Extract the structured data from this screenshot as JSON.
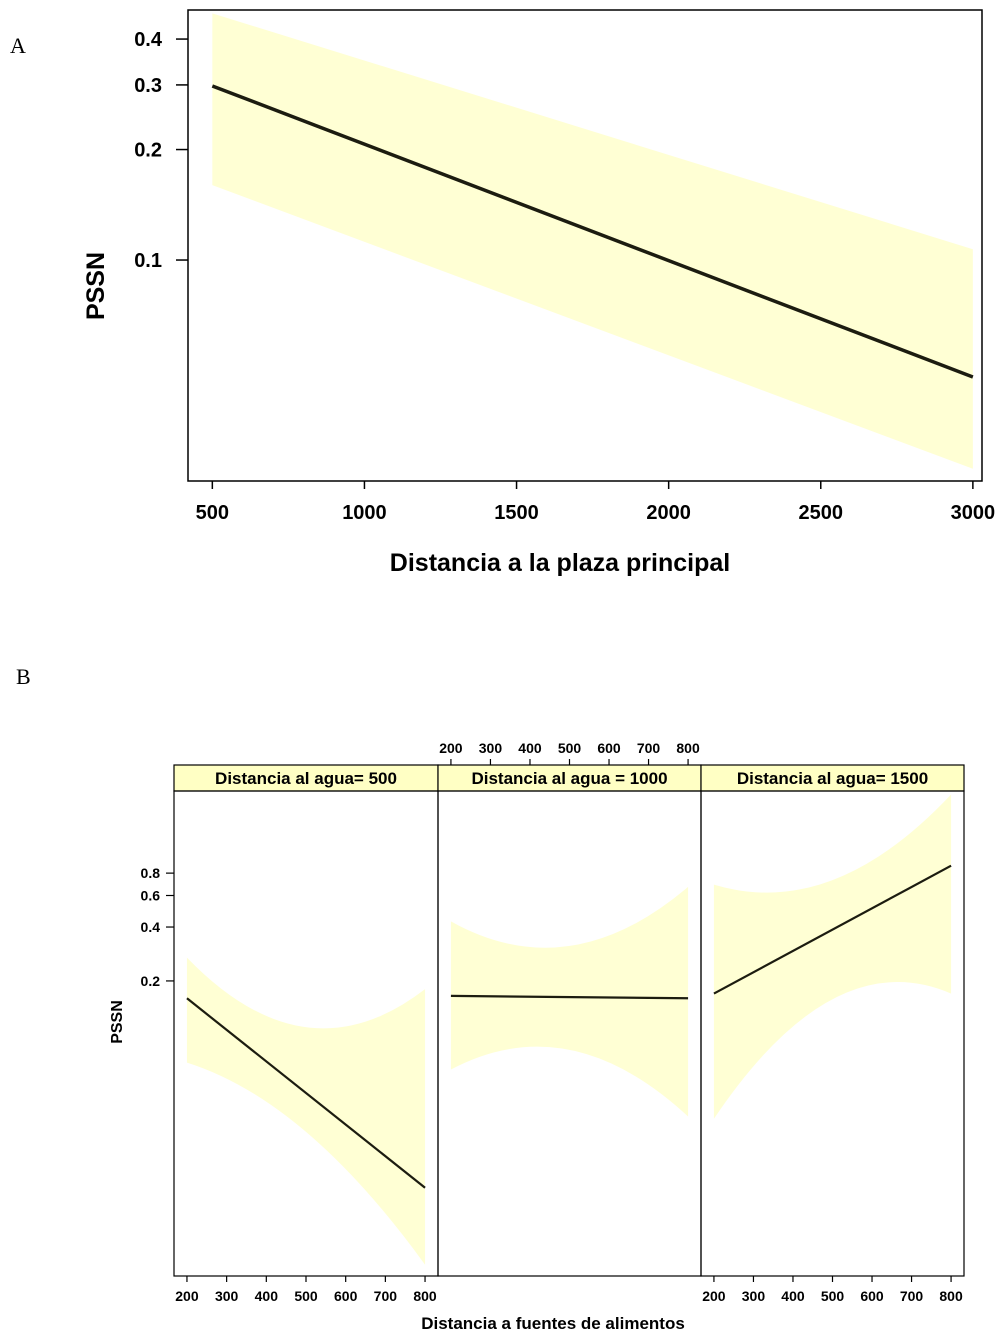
{
  "chart_data": [
    {
      "panel": "A",
      "type": "line",
      "xlabel": "Distancia a la plaza principal",
      "ylabel": "PSSN",
      "xlim": [
        420,
        3030
      ],
      "ylim_log": [
        0.025,
        0.48
      ],
      "y_scale": "log",
      "x_ticks": [
        500,
        1000,
        1500,
        2000,
        2500,
        3000
      ],
      "y_ticks": [
        0.1,
        0.2,
        0.3,
        0.4
      ],
      "y_tick_labels": [
        "0.1",
        "0.2",
        "0.3",
        "0.4"
      ],
      "series": [
        {
          "x": [
            500,
            3000
          ],
          "y": [
            0.298,
            0.048
          ],
          "ci_lower": [
            0.16,
            0.027
          ],
          "ci_upper": [
            0.47,
            0.107
          ]
        }
      ],
      "colors": {
        "line": "#1c1c10",
        "band": "#ffffd4"
      },
      "grid": false
    },
    {
      "panel": "B",
      "type": "line",
      "xlabel": "Distancia a fuentes de alimentos",
      "ylabel": "PSSN",
      "xlim": [
        185,
        815
      ],
      "ylim_log": [
        0.0045,
        2.3
      ],
      "y_scale": "log",
      "x_ticks": [
        200,
        300,
        400,
        500,
        600,
        700,
        800
      ],
      "y_ticks": [
        0.2,
        0.4,
        0.6,
        0.8
      ],
      "y_tick_labels": [
        "0.2",
        "0.4",
        "0.6",
        "0.8"
      ],
      "facets": [
        {
          "label": "Distancia al agua= 500",
          "x": [
            200,
            800
          ],
          "y": [
            0.16,
            0.014
          ],
          "ci_lower": [
            0.07,
            0.0052
          ],
          "ci_upper": [
            0.27,
            0.18
          ]
        },
        {
          "label": "Distancia al agua = 1000",
          "x": [
            200,
            800
          ],
          "y": [
            0.165,
            0.16
          ],
          "ci_lower": [
            0.064,
            0.035
          ],
          "ci_upper": [
            0.43,
            0.67
          ]
        },
        {
          "label": "Distancia al agua= 1500",
          "x": [
            200,
            800
          ],
          "y": [
            0.17,
            0.88
          ],
          "ci_lower": [
            0.034,
            0.17
          ],
          "ci_upper": [
            0.69,
            2.2
          ]
        }
      ],
      "colors": {
        "line": "#1c1c10",
        "band": "#ffffd4",
        "strip": "#ffffc4"
      },
      "grid": false
    }
  ]
}
